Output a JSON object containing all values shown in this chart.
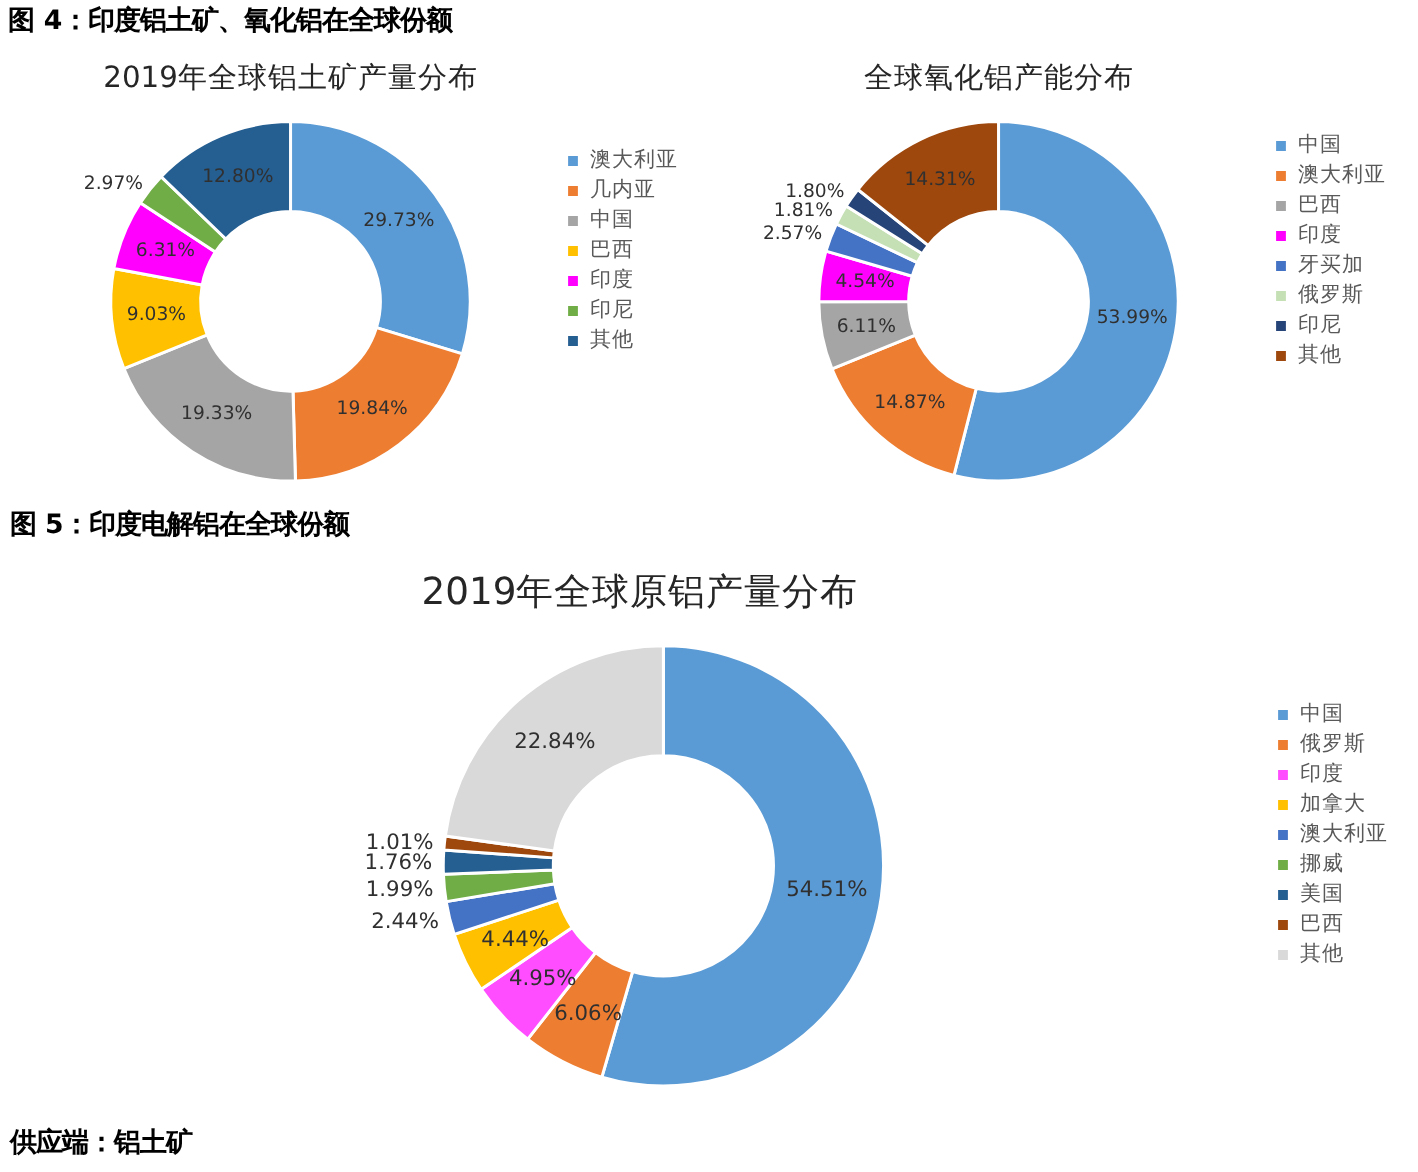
{
  "chart_data": [
    {
      "type": "donut",
      "title": "2019年全球铝土矿产量分布",
      "annotations": [
        "图 4：印度铝土矿、氧化铝在全球份额"
      ],
      "legend": "right",
      "categories": [
        "澳大利亚",
        "几内亚",
        "中国",
        "巴西",
        "印度",
        "印尼",
        "其他"
      ],
      "values": [
        29.73,
        19.84,
        19.33,
        9.03,
        6.31,
        2.97,
        12.8
      ],
      "value_labels": [
        "29.73%",
        "19.84%",
        "19.33%",
        "9.03%",
        "6.31%",
        "2.97%",
        "12.80%"
      ],
      "colors": [
        "#5b9bd5",
        "#ed7d31",
        "#a5a5a5",
        "#ffc000",
        "#ff00ff",
        "#70ad47",
        "#255e91"
      ]
    },
    {
      "type": "donut",
      "title": "全球氧化铝产能分布",
      "legend": "right",
      "categories": [
        "中国",
        "澳大利亚",
        "巴西",
        "印度",
        "牙买加",
        "俄罗斯",
        "印尼",
        "其他"
      ],
      "values": [
        53.99,
        14.87,
        6.11,
        4.54,
        2.57,
        1.81,
        1.8,
        14.31
      ],
      "value_labels": [
        "53.99%",
        "14.87%",
        "6.11%",
        "4.54%",
        "2.57%",
        "1.81%",
        "1.80%",
        "14.31%"
      ],
      "colors": [
        "#5b9bd5",
        "#ed7d31",
        "#a5a5a5",
        "#ff00ff",
        "#4472c4",
        "#c5e0b4",
        "#264478",
        "#9e480e"
      ]
    },
    {
      "type": "donut",
      "title": "2019年全球原铝产量分布",
      "annotations": [
        "图 5：印度电解铝在全球份额",
        "供应端：铝土矿"
      ],
      "legend": "right",
      "categories": [
        "中国",
        "俄罗斯",
        "印度",
        "加拿大",
        "澳大利亚",
        "挪威",
        "美国",
        "巴西",
        "其他"
      ],
      "values": [
        54.51,
        6.06,
        4.95,
        4.44,
        2.44,
        1.99,
        1.76,
        1.01,
        22.84
      ],
      "value_labels": [
        "54.51%",
        "6.06%",
        "4.95%",
        "4.44%",
        "2.44%",
        "1.99%",
        "1.76%",
        "1.01%",
        "22.84%"
      ],
      "colors": [
        "#5b9bd5",
        "#ed7d31",
        "#ff4dff",
        "#ffc000",
        "#4472c4",
        "#70ad47",
        "#255e91",
        "#9e480e",
        "#d9d9d9"
      ]
    }
  ]
}
